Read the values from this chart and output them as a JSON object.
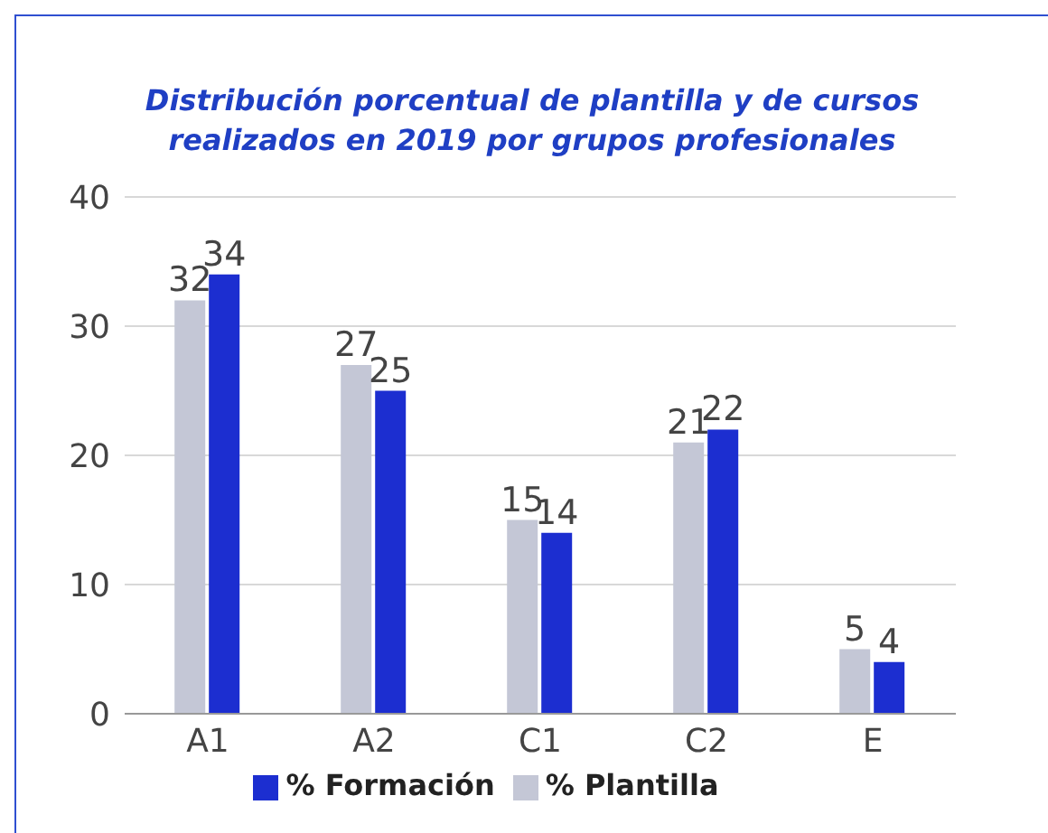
{
  "chart_data": {
    "type": "bar",
    "title": "Distribución porcentual de plantilla y de cursos realizados en 2019 por grupos profesionales",
    "categories": [
      "A1",
      "A2",
      "C1",
      "C2",
      "E"
    ],
    "series": [
      {
        "name": "% Plantilla",
        "color": "#c4c7d6",
        "values": [
          32,
          27,
          15,
          21,
          5
        ]
      },
      {
        "name": "% Formación",
        "color": "#1c2ed0",
        "values": [
          34,
          25,
          14,
          22,
          4
        ]
      }
    ],
    "ylim": [
      0,
      40
    ],
    "yticks": [
      0,
      10,
      20,
      30,
      40
    ],
    "grid": "y",
    "legend": "bottom",
    "data_labels": true
  }
}
